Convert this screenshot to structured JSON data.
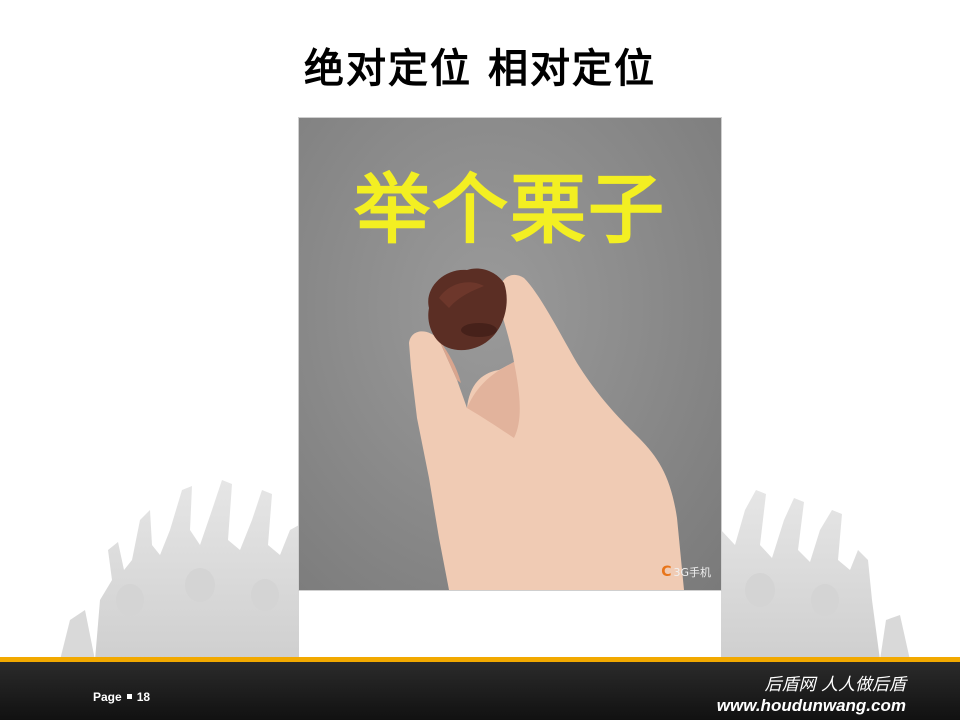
{
  "slide": {
    "title": "绝对定位  相对定位"
  },
  "photo": {
    "caption": "举个栗子",
    "watermark_logo": "C",
    "watermark_text": "3G手机"
  },
  "footer": {
    "page_label": "Page",
    "page_number": "18",
    "slogan": "后盾网 人人做后盾",
    "url": "www.houdunwang.com"
  },
  "colors": {
    "accent_bar": "#f2a900",
    "caption_yellow": "#f3ef22",
    "footer_bg": "#1a1a1a"
  }
}
